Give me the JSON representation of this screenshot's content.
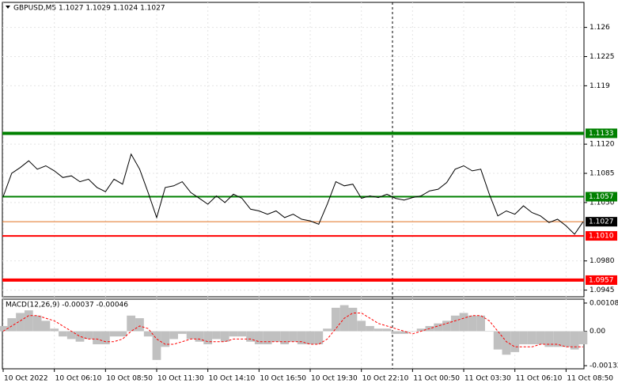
{
  "chart_data": {
    "type": "line",
    "title": "GBPUSD,M5  1.1027 1.1029 1.1024 1.1027",
    "grid": true,
    "categories": [
      "10 Oct 2022",
      null,
      null,
      null,
      null,
      null,
      "10 Oct 06:10",
      null,
      null,
      null,
      null,
      null,
      "10 Oct 08:50",
      null,
      null,
      null,
      null,
      null,
      "10 Oct 11:30",
      null,
      null,
      null,
      null,
      null,
      "10 Oct 14:10",
      null,
      null,
      null,
      null,
      null,
      "10 Oct 16:50",
      null,
      null,
      null,
      null,
      null,
      "10 Oct 19:30",
      null,
      null,
      null,
      null,
      null,
      "10 Oct 22:10",
      null,
      null,
      null,
      null,
      null,
      "11 Oct 00:50",
      null,
      null,
      null,
      null,
      null,
      "11 Oct 03:30",
      null,
      null,
      null,
      null,
      null,
      "11 Oct 06:10",
      null,
      null,
      null,
      null,
      null,
      "11 Oct 08:50",
      null,
      null
    ],
    "series": [
      {
        "name": "GBPUSD,M5",
        "color": "#000000",
        "values": [
          1.1057,
          1.1085,
          1.1092,
          1.11,
          1.109,
          1.1094,
          1.1088,
          1.108,
          1.1082,
          1.1075,
          1.1078,
          1.1068,
          1.1063,
          1.1078,
          1.1072,
          1.1108,
          1.109,
          1.1062,
          1.1032,
          1.1068,
          1.107,
          1.1075,
          1.1062,
          1.1055,
          1.1048,
          1.1058,
          1.105,
          1.106,
          1.1055,
          1.1042,
          1.104,
          1.1036,
          1.104,
          1.1032,
          1.1036,
          1.103,
          1.1028,
          1.1024,
          1.1048,
          1.1075,
          1.107,
          1.1072,
          1.1055,
          1.1058,
          1.1056,
          1.106,
          1.1055,
          1.1053,
          1.1056,
          1.1058,
          1.1064,
          1.1066,
          1.1074,
          1.109,
          1.1094,
          1.1088,
          1.109,
          1.106,
          1.1034,
          1.104,
          1.1036,
          1.1046,
          1.1038,
          1.1034,
          1.1026,
          1.103,
          1.1022,
          1.1012,
          1.1027
        ]
      }
    ],
    "ylim": [
      1.0937,
      1.129
    ],
    "yticks": [
      1.126,
      1.1225,
      1.119,
      {
        "value": 1.112,
        "label": "1.1120"
      },
      1.1085,
      {
        "value": 1.105,
        "label": "1.1050"
      },
      {
        "value": 1.098,
        "label": "1.0980"
      },
      1.0945
    ],
    "levels": [
      {
        "value": 1.1133,
        "label": "1.1133",
        "color": "#008000",
        "width": 4
      },
      {
        "value": 1.1057,
        "label": "1.1057",
        "color": "#008000",
        "width": 2
      },
      {
        "value": 1.1027,
        "label": "1.1027",
        "color": "#e07020",
        "width": 1
      },
      {
        "value": 1.101,
        "label": "1.1010",
        "color": "#ff0000",
        "width": 2
      },
      {
        "value": 1.0957,
        "label": "1.0957",
        "color": "#ff0000",
        "width": 4
      }
    ],
    "macd": {
      "title": "MACD(12,26,9) -0.00037 -0.00046",
      "ylim": [
        -0.00144,
        0.00123
      ],
      "yticks": [
        0.00108,
        {
          "value": 0,
          "label": "0.00"
        },
        -0.00132
      ],
      "histogram": {
        "color": "#c0c0c0",
        "values": [
          0.0002,
          0.0005,
          0.0007,
          0.0008,
          0.0006,
          0.0004,
          0.0001,
          -0.0002,
          -0.0003,
          -0.0004,
          -0.0003,
          -0.0005,
          -0.0005,
          -0.0002,
          -0.0002,
          0.0006,
          0.0005,
          -0.0002,
          -0.0011,
          -0.0006,
          -0.0003,
          -0.0001,
          -0.0003,
          -0.0004,
          -0.0005,
          -0.0003,
          -0.0004,
          -0.0002,
          -0.0002,
          -0.0004,
          -0.0005,
          -0.0005,
          -0.0004,
          -0.0005,
          -0.0004,
          -0.0005,
          -0.0005,
          -0.0005,
          0.0001,
          0.0009,
          0.001,
          0.0009,
          0.0004,
          0.0002,
          0.0001,
          0.0001,
          -0.0001,
          -0.0001,
          0.0,
          0.0001,
          0.0002,
          0.0003,
          0.0004,
          0.0006,
          0.0007,
          0.0006,
          0.0006,
          0.0,
          -0.0007,
          -0.0009,
          -0.0008,
          -0.0005,
          -0.0005,
          -0.0005,
          -0.0006,
          -0.0006,
          -0.0006,
          -0.0007,
          -0.0005
        ]
      },
      "signal": {
        "color": "#ff0000",
        "values": [
          0.0,
          0.0002,
          0.0004,
          0.0006,
          0.0006,
          0.0005,
          0.0004,
          0.0002,
          0.0,
          -0.0002,
          -0.0003,
          -0.0003,
          -0.0004,
          -0.0004,
          -0.0003,
          0.0,
          0.0002,
          0.0001,
          -0.0003,
          -0.0005,
          -0.0005,
          -0.0004,
          -0.0003,
          -0.0003,
          -0.0004,
          -0.0004,
          -0.0004,
          -0.0003,
          -0.0003,
          -0.0003,
          -0.0004,
          -0.0004,
          -0.0004,
          -0.0004,
          -0.0004,
          -0.0004,
          -0.0005,
          -0.0005,
          -0.0003,
          0.0001,
          0.0005,
          0.0007,
          0.0007,
          0.0005,
          0.0003,
          0.0002,
          0.0001,
          0.0,
          -0.0001,
          0.0,
          0.0001,
          0.0002,
          0.0003,
          0.0004,
          0.0005,
          0.0006,
          0.0006,
          0.0004,
          0.0,
          -0.0004,
          -0.0006,
          -0.0006,
          -0.0006,
          -0.0005,
          -0.0005,
          -0.0005,
          -0.0006,
          -0.0006,
          -0.0006
        ]
      }
    }
  }
}
